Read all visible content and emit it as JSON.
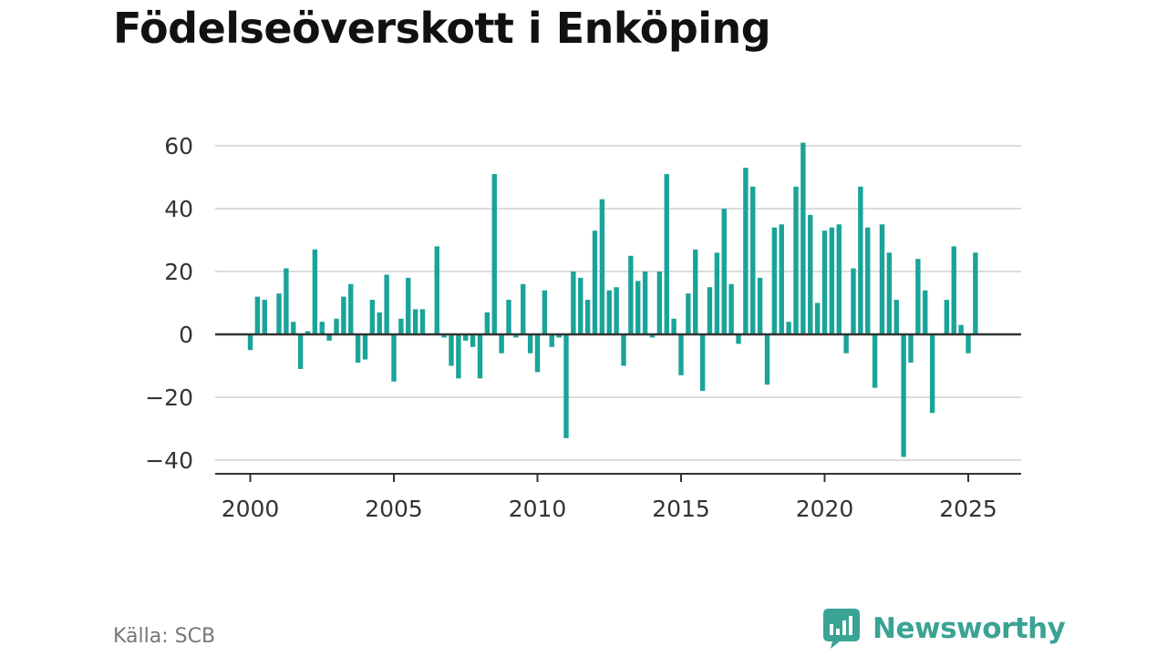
{
  "title": "Födelseöverskott i Enköping",
  "source": "Källa: SCB",
  "brand": "Newsworthy",
  "colors": {
    "bar": "#1aa499",
    "grid": "#dcdcdc",
    "zero_line": "#333333",
    "brand": "#3aa394"
  },
  "chart_data": {
    "type": "bar",
    "title": "Födelseöverskott i Enköping",
    "xlabel": "",
    "ylabel": "",
    "frequency": "quarterly",
    "xlim": [
      1999.5,
      2027.5
    ],
    "ylim": [
      -44,
      62
    ],
    "xticks": [
      2000,
      2005,
      2010,
      2015,
      2020,
      2025
    ],
    "yticks": [
      -40,
      -20,
      0,
      20,
      40,
      60
    ],
    "grid": true,
    "legend": "none",
    "x": [
      "2000 Q1",
      "2000 Q2",
      "2000 Q3",
      "2000 Q4",
      "2001 Q1",
      "2001 Q2",
      "2001 Q3",
      "2001 Q4",
      "2002 Q1",
      "2002 Q2",
      "2002 Q3",
      "2002 Q4",
      "2003 Q1",
      "2003 Q2",
      "2003 Q3",
      "2003 Q4",
      "2004 Q1",
      "2004 Q2",
      "2004 Q3",
      "2004 Q4",
      "2005 Q1",
      "2005 Q2",
      "2005 Q3",
      "2005 Q4",
      "2006 Q1",
      "2006 Q2",
      "2006 Q3",
      "2006 Q4",
      "2007 Q1",
      "2007 Q2",
      "2007 Q3",
      "2007 Q4",
      "2008 Q1",
      "2008 Q2",
      "2008 Q3",
      "2008 Q4",
      "2009 Q1",
      "2009 Q2",
      "2009 Q3",
      "2009 Q4",
      "2010 Q1",
      "2010 Q2",
      "2010 Q3",
      "2010 Q4",
      "2011 Q1",
      "2011 Q2",
      "2011 Q3",
      "2011 Q4",
      "2012 Q1",
      "2012 Q2",
      "2012 Q3",
      "2012 Q4",
      "2013 Q1",
      "2013 Q2",
      "2013 Q3",
      "2013 Q4",
      "2014 Q1",
      "2014 Q2",
      "2014 Q3",
      "2014 Q4",
      "2015 Q1",
      "2015 Q2",
      "2015 Q3",
      "2015 Q4",
      "2016 Q1",
      "2016 Q2",
      "2016 Q3",
      "2016 Q4",
      "2017 Q1",
      "2017 Q2",
      "2017 Q3",
      "2017 Q4",
      "2018 Q1",
      "2018 Q2",
      "2018 Q3",
      "2018 Q4",
      "2019 Q1",
      "2019 Q2",
      "2019 Q3",
      "2019 Q4",
      "2020 Q1",
      "2020 Q2",
      "2020 Q3",
      "2020 Q4",
      "2021 Q1",
      "2021 Q2",
      "2021 Q3",
      "2021 Q4",
      "2022 Q1",
      "2022 Q2",
      "2022 Q3",
      "2022 Q4",
      "2023 Q1",
      "2023 Q2",
      "2023 Q3",
      "2023 Q4",
      "2024 Q1",
      "2024 Q2",
      "2024 Q3",
      "2024 Q4",
      "2025 Q1",
      "2025 Q2"
    ],
    "values": [
      -5,
      12,
      11,
      0,
      13,
      21,
      4,
      -11,
      1,
      27,
      4,
      -2,
      5,
      12,
      16,
      -9,
      -8,
      11,
      7,
      19,
      -15,
      5,
      18,
      8,
      8,
      0,
      28,
      -1,
      -10,
      -14,
      -2,
      -4,
      -14,
      7,
      51,
      -6,
      11,
      -1,
      16,
      -6,
      -12,
      14,
      -4,
      -1,
      -33,
      20,
      18,
      11,
      33,
      43,
      14,
      15,
      -10,
      25,
      17,
      20,
      -1,
      20,
      51,
      5,
      -13,
      13,
      27,
      -18,
      15,
      26,
      40,
      16,
      -3,
      53,
      47,
      18,
      -16,
      34,
      35,
      4,
      47,
      61,
      38,
      10,
      33,
      34,
      35,
      -6,
      21,
      47,
      34,
      -17,
      35,
      26,
      11,
      -39,
      -9,
      24,
      14,
      -25,
      0,
      11,
      28,
      3,
      -6,
      26
    ]
  }
}
